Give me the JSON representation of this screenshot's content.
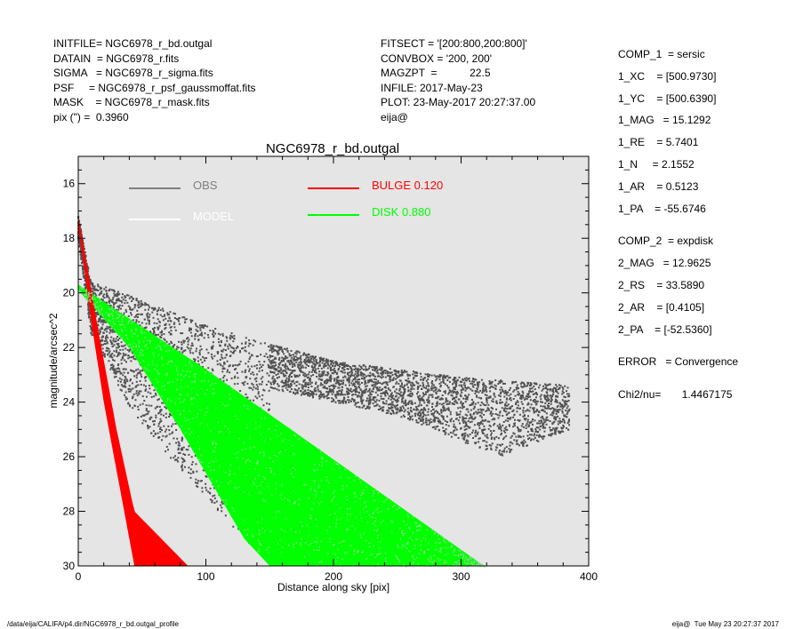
{
  "header": {
    "left_lines": [
      "INITFILE= NGC6978_r_bd.outgal",
      "DATAIN  = NGC6978_r.fits",
      "SIGMA   = NGC6978_r_sigma.fits",
      "PSF     = NGC6978_r_psf_gaussmoffat.fits",
      "MASK    = NGC6978_r_mask.fits",
      "pix (\") =  0.3960"
    ],
    "mid_lines": [
      "FITSECT = '[200:800,200:800]'",
      "CONVBOX = '200, 200'",
      "MAGZPT  =           22.5",
      "INFILE: 2017-May-23",
      "PLOT: 23-May-2017 20:27:37.00",
      "eija@"
    ],
    "right_group1": [
      "COMP_1  = sersic",
      "1_XC    = [500.9730]",
      "1_YC    = [500.6390]",
      "1_MAG   = 15.1292",
      "1_RE    = 5.7401",
      "1_N     = 2.1552",
      "1_AR    = 0.5123",
      "1_PA    = -55.6746"
    ],
    "right_group2": [
      "COMP_2  = expdisk",
      "2_MAG   = 12.9625",
      "2_RS    = 33.5890",
      "2_AR    = [0.4105]",
      "2_PA    = [-52.5360]"
    ],
    "right_group3": [
      "ERROR   = Convergence"
    ],
    "right_group4": [
      "Chi2/nu=       1.4467175"
    ]
  },
  "footer": {
    "left": "/data/eija/CALIFA/p4.dir/NGC6978_r_bd.outgal_profile",
    "right": "eija@  Tue May 23 20:27:37 2017"
  },
  "chart_data": {
    "type": "scatter",
    "title": "NGC6978_r_bd.outgal",
    "xlabel": "Distance along sky [pix]",
    "ylabel": "magnitude/arcsec^2",
    "xlim": [
      0,
      400
    ],
    "ylim": [
      30,
      15
    ],
    "y_inverted": true,
    "grid": false,
    "background": "#e5e5e5",
    "x_ticks": [
      0,
      100,
      200,
      300,
      400
    ],
    "y_ticks": [
      16,
      18,
      20,
      22,
      24,
      26,
      28,
      30
    ],
    "legend": [
      {
        "label": "OBS",
        "color": "#7f7f7f"
      },
      {
        "label": "MODEL",
        "color": "#ffffff"
      },
      {
        "label": "BULGE  0.120",
        "color": "#ff0000"
      },
      {
        "label": "DISK  0.880",
        "color": "#00ff00"
      }
    ],
    "series": [
      {
        "name": "OBS",
        "color": "#505050",
        "kind": "point-cloud",
        "upper_edge": [
          [
            0,
            17.2
          ],
          [
            10,
            19.6
          ],
          [
            40,
            20.1
          ],
          [
            100,
            21.2
          ],
          [
            200,
            22.5
          ],
          [
            300,
            23.1
          ],
          [
            385,
            23.4
          ]
        ],
        "lower_edge": [
          [
            0,
            18.0
          ],
          [
            10,
            21.5
          ],
          [
            40,
            24.2
          ],
          [
            80,
            26.5
          ],
          [
            130,
            29.0
          ],
          [
            150,
            30.0
          ]
        ],
        "far_lower_edge": [
          [
            150,
            23.5
          ],
          [
            250,
            24.5
          ],
          [
            330,
            26.0
          ],
          [
            385,
            25.0
          ]
        ]
      },
      {
        "name": "BULGE  0.120",
        "color": "#ff0000",
        "kind": "band",
        "upper_edge": [
          [
            0,
            17.2
          ],
          [
            5,
            18.5
          ],
          [
            15,
            21.2
          ],
          [
            30,
            25.0
          ],
          [
            44,
            28.0
          ],
          [
            86,
            30.0
          ]
        ],
        "lower_edge": [
          [
            0,
            17.6
          ],
          [
            5,
            19.2
          ],
          [
            10,
            21.0
          ],
          [
            20,
            24.0
          ],
          [
            30,
            26.5
          ],
          [
            44,
            30.0
          ]
        ]
      },
      {
        "name": "DISK  0.880",
        "color": "#00ff00",
        "kind": "band",
        "upper_edge": [
          [
            0,
            19.7
          ],
          [
            100,
            22.8
          ],
          [
            200,
            26.1
          ],
          [
            318,
            30.0
          ]
        ],
        "lower_edge": [
          [
            0,
            19.9
          ],
          [
            40,
            22.0
          ],
          [
            80,
            25.0
          ],
          [
            130,
            29.0
          ],
          [
            150,
            30.0
          ]
        ]
      }
    ]
  }
}
